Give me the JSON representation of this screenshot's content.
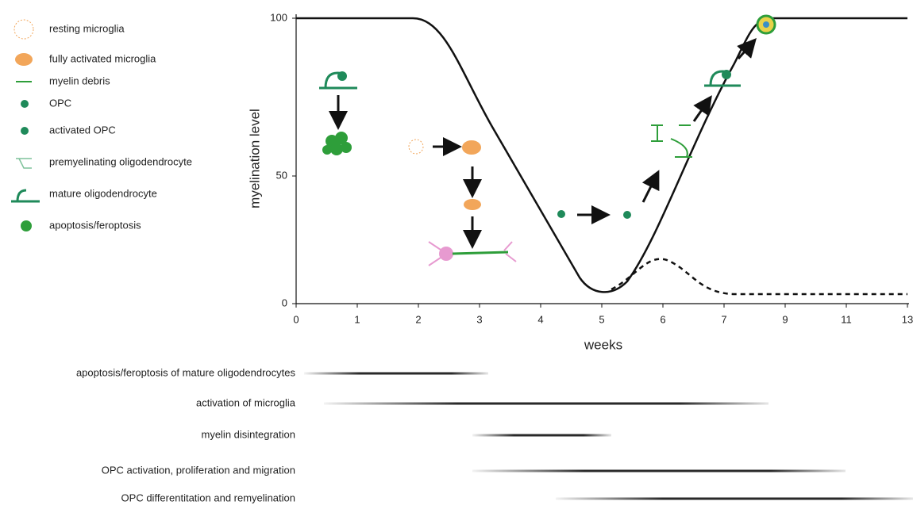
{
  "plot": {
    "y_label": "myelination level",
    "x_label": "weeks",
    "y_ticks": [
      "100",
      "50",
      "0"
    ],
    "x_ticks": [
      "0",
      "1",
      "2",
      "3",
      "4",
      "5",
      "6",
      "7",
      "9",
      "11",
      "13"
    ]
  },
  "legend": [
    "resting microglia",
    "fully activated microglia",
    "myelin debris",
    "OPC",
    "activated OPC",
    "premyelinating oligodendrocyte",
    "mature oligodendrocyte",
    "apoptosis/feroptosis"
  ],
  "processes": [
    "apoptosis/feroptosis of mature oligodendrocytes",
    "activation of microglia",
    "myelin disintegration",
    "OPC activation, proliferation and migration",
    "OPC differentitation and remyelination"
  ]
}
